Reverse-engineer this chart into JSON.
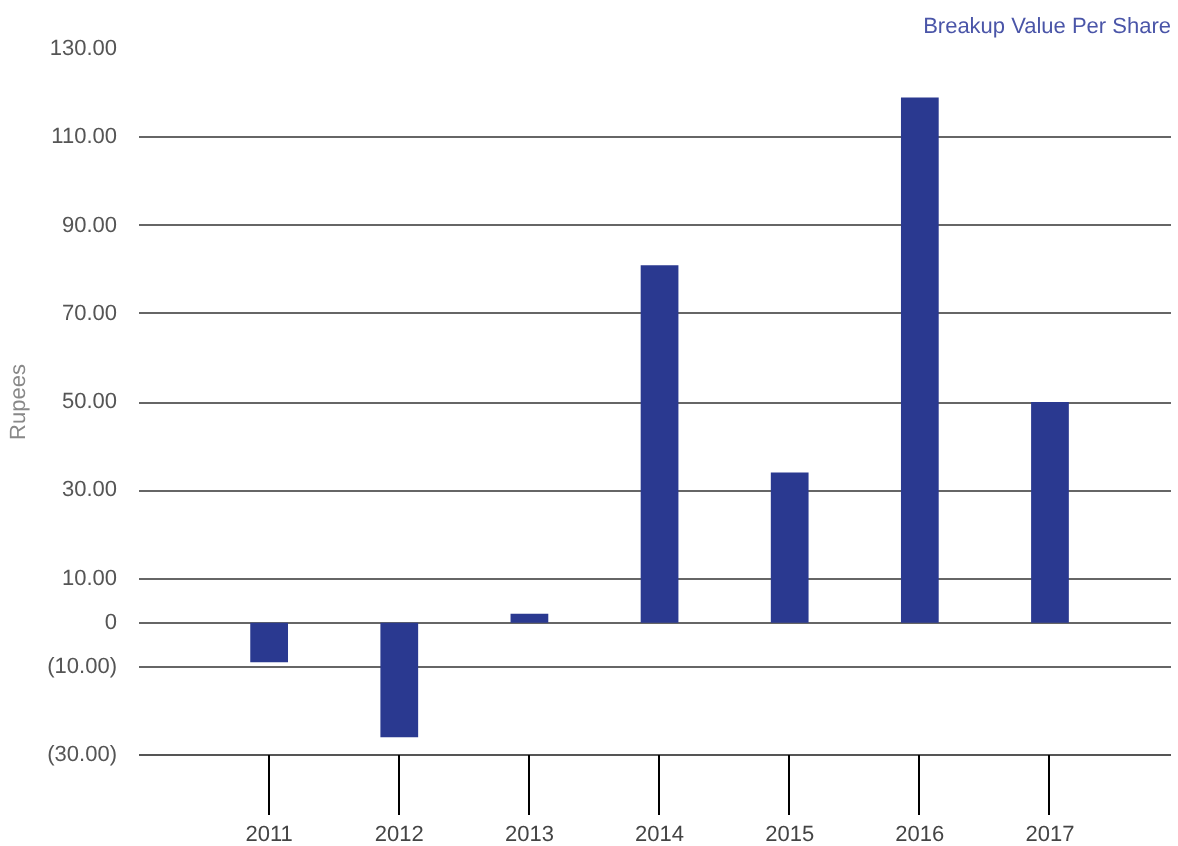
{
  "chart_data": {
    "type": "bar",
    "title": "Breakup Value Per Share",
    "ylabel": "Rupees",
    "categories": [
      "2011",
      "2012",
      "2013",
      "2014",
      "2015",
      "2016",
      "2017"
    ],
    "values": [
      -9,
      -26,
      2,
      81,
      34,
      119,
      50
    ],
    "color": "#2a3990",
    "ylim": [
      -30,
      130
    ],
    "yticks": [
      {
        "value": -30,
        "label": "(30.00)"
      },
      {
        "value": -10,
        "label": "(10.00)"
      },
      0,
      {
        "value": 10,
        "label": "10.00"
      },
      {
        "value": 30,
        "label": "30.00"
      },
      {
        "value": 50,
        "label": "50.00"
      },
      {
        "value": 70,
        "label": "70.00"
      },
      {
        "value": 90,
        "label": "90.00"
      },
      {
        "value": 110,
        "label": "110.00"
      },
      {
        "value": 130,
        "label": "130.00"
      }
    ],
    "grid": "y"
  }
}
